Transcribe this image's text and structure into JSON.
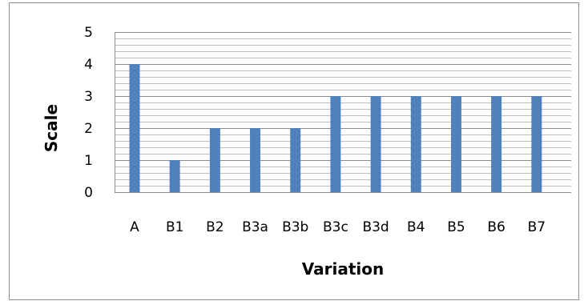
{
  "chart_data": {
    "type": "bar",
    "title": "",
    "xlabel": "Variation",
    "ylabel": "Scale",
    "categories": [
      "A",
      "B1",
      "B2",
      "B3a",
      "B3b",
      "B3c",
      "B3d",
      "B4",
      "B5",
      "B6",
      "B7"
    ],
    "values": [
      4,
      1,
      2,
      2,
      2,
      3,
      3,
      3,
      3,
      3,
      3
    ],
    "ylim": [
      0,
      5
    ],
    "yticks": [
      "0",
      "1",
      "2",
      "3",
      "4",
      "5"
    ],
    "grid": "horizontal major and minor",
    "legend": "none",
    "bar_color": "#4f81bd",
    "grid_color": "#bfbfbf",
    "major_grid_color": "#8c8c8c"
  }
}
